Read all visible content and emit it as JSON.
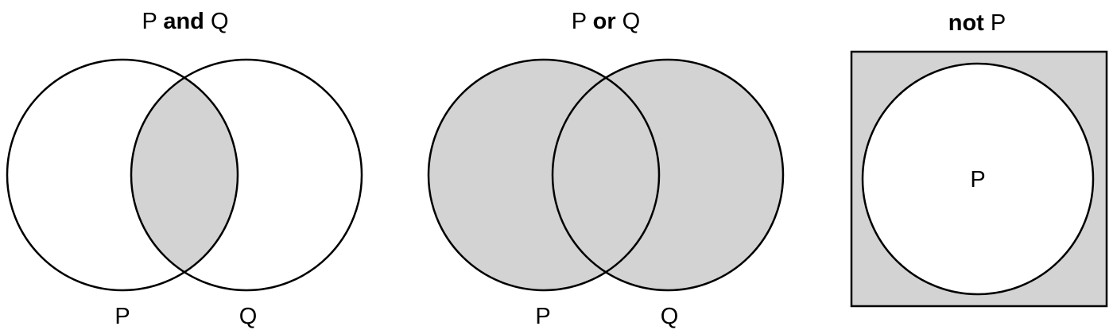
{
  "diagrams": {
    "and": {
      "title": {
        "prefix": "P ",
        "operator": "and",
        "suffix": " Q"
      },
      "label_p": "P",
      "label_q": "Q"
    },
    "or": {
      "title": {
        "prefix": "P ",
        "operator": "or",
        "suffix": " Q"
      },
      "label_p": "P",
      "label_q": "Q"
    },
    "not": {
      "title": {
        "operator": "not",
        "suffix": " P"
      },
      "label_p": "P"
    }
  },
  "colors": {
    "shade": "#d3d3d3",
    "stroke": "#000000",
    "background": "#ffffff"
  }
}
